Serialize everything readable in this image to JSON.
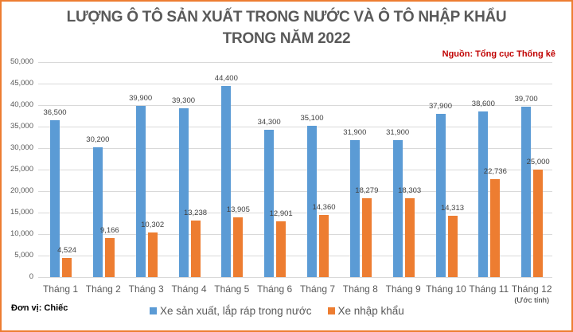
{
  "title_line1": "LƯỢNG Ô TÔ SẢN XUẤT TRONG NƯỚC VÀ Ô TÔ NHẬP KHẨU",
  "title_line2": "TRONG NĂM 2022",
  "source": "Nguồn: Tổng cục Thống kê",
  "unit": "Đơn vị: Chiếc",
  "colors": {
    "domestic": "#5B9BD5",
    "import": "#ED7D31",
    "frame": "#ED7D31",
    "source": "#C00000"
  },
  "yticks": [
    "0",
    "5,000",
    "10,000",
    "15,000",
    "20,000",
    "25,000",
    "30,000",
    "35,000",
    "40,000",
    "45,000",
    "50,000"
  ],
  "month_note": "(Ước tính)",
  "legend": {
    "domestic": "Xe sản xuất, lắp ráp trong nước",
    "import": "Xe nhập khẩu"
  },
  "chart_data": {
    "type": "bar",
    "title": "LƯỢNG Ô TÔ SẢN XUẤT TRONG NƯỚC VÀ Ô TÔ NHẬP KHẨU TRONG NĂM 2022",
    "xlabel": "",
    "ylabel": "Đơn vị: Chiếc",
    "ylim": [
      0,
      50000
    ],
    "grid": true,
    "legend_position": "bottom",
    "categories": [
      "Tháng 1",
      "Tháng 2",
      "Tháng 3",
      "Tháng 4",
      "Tháng 5",
      "Tháng 6",
      "Tháng 7",
      "Tháng 8",
      "Tháng 9",
      "Tháng 10",
      "Tháng 11",
      "Tháng 12"
    ],
    "series": [
      {
        "name": "Xe sản xuất, lắp ráp trong nước",
        "values": [
          36500,
          30200,
          39900,
          39300,
          44400,
          34300,
          35100,
          31900,
          31900,
          37900,
          38600,
          39700
        ],
        "labels": [
          "36,500",
          "30,200",
          "39,900",
          "39,300",
          "44,400",
          "34,300",
          "35,100",
          "31,900",
          "31,900",
          "37,900",
          "38,600",
          "39,700"
        ]
      },
      {
        "name": "Xe nhập khẩu",
        "values": [
          4524,
          9166,
          10302,
          13238,
          13905,
          12901,
          14360,
          18279,
          18303,
          14313,
          22736,
          25000
        ],
        "labels": [
          "4,524",
          "9,166",
          "10,302",
          "13,238",
          "13,905",
          "12,901",
          "14,360",
          "18,279",
          "18,303",
          "14,313",
          "22,736",
          "25,000"
        ]
      }
    ],
    "annotations": [
      "Nguồn: Tổng cục Thống kê",
      "Tháng 12 (Ước tính)"
    ]
  }
}
